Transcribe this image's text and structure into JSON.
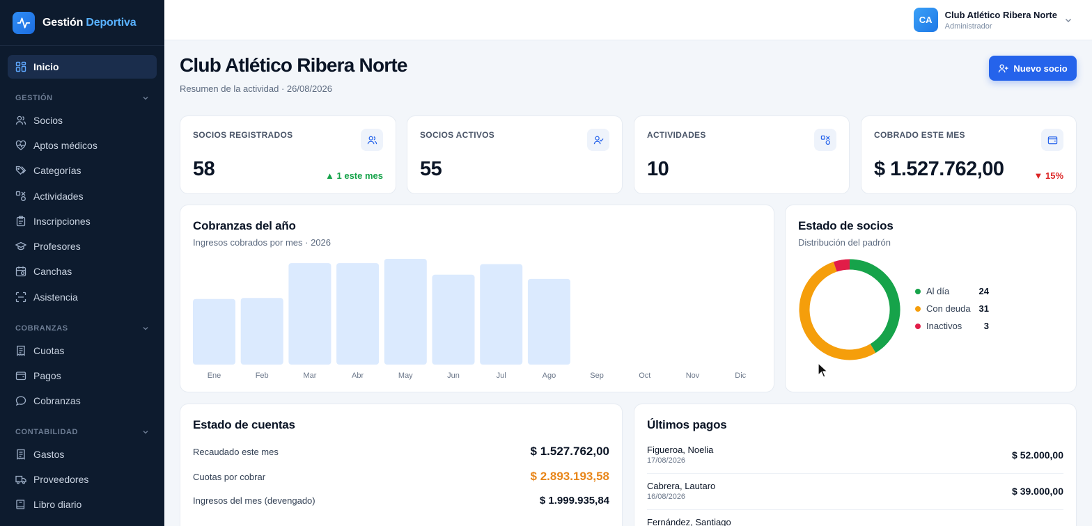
{
  "app": {
    "brand_main": "Gestión",
    "brand_accent": "Deportiva"
  },
  "sidebar": {
    "active": {
      "label": "Inicio",
      "icon": "grid-icon"
    },
    "sections": [
      {
        "label": "GESTIÓN",
        "items": [
          {
            "label": "Socios",
            "icon": "users-icon"
          },
          {
            "label": "Aptos médicos",
            "icon": "heart-pulse-icon"
          },
          {
            "label": "Categorías",
            "icon": "tags-icon"
          },
          {
            "label": "Actividades",
            "icon": "shapes-icon"
          },
          {
            "label": "Inscripciones",
            "icon": "clipboard-icon"
          },
          {
            "label": "Profesores",
            "icon": "graduation-cap-icon"
          },
          {
            "label": "Canchas",
            "icon": "calendar-icon"
          },
          {
            "label": "Asistencia",
            "icon": "scan-icon"
          }
        ]
      },
      {
        "label": "COBRANZAS",
        "items": [
          {
            "label": "Cuotas",
            "icon": "receipt-icon"
          },
          {
            "label": "Pagos",
            "icon": "wallet-icon"
          },
          {
            "label": "Cobranzas",
            "icon": "message-icon"
          }
        ]
      },
      {
        "label": "CONTABILIDAD",
        "items": [
          {
            "label": "Gastos",
            "icon": "receipt-icon"
          },
          {
            "label": "Proveedores",
            "icon": "truck-icon"
          },
          {
            "label": "Libro diario",
            "icon": "book-icon"
          }
        ]
      }
    ]
  },
  "topbar": {
    "avatar_initials": "CA",
    "user_name": "Club Atlético Ribera Norte",
    "user_role": "Administrador"
  },
  "header": {
    "title": "Club Atlético Ribera Norte",
    "subtitle": "Resumen de la actividad · 26/08/2026",
    "new_button": "Nuevo socio"
  },
  "stats": [
    {
      "label": "SOCIOS REGISTRADOS",
      "value": "58",
      "trend": "▲ 1 este mes",
      "trend_dir": "up",
      "icon": "users-icon"
    },
    {
      "label": "SOCIOS ACTIVOS",
      "value": "55",
      "trend": "",
      "icon": "user-check-icon"
    },
    {
      "label": "ACTIVIDADES",
      "value": "10",
      "trend": "",
      "icon": "shapes-icon"
    },
    {
      "label": "COBRADO ESTE MES",
      "value": "$ 1.527.762,00",
      "trend": "▼ 15%",
      "trend_dir": "down",
      "icon": "wallet-icon"
    }
  ],
  "revenue_chart": {
    "title": "Cobranzas del año",
    "subtitle": "Ingresos cobrados por mes · 2026"
  },
  "members_chart": {
    "title": "Estado de socios",
    "subtitle": "Distribución del padrón"
  },
  "chart_data": [
    {
      "type": "bar",
      "title": "Cobranzas del año",
      "subtitle": "Ingresos cobrados por mes · 2026",
      "categories": [
        "Ene",
        "Feb",
        "Mar",
        "Abr",
        "May",
        "Jun",
        "Jul",
        "Ago",
        "Sep",
        "Oct",
        "Nov",
        "Dic"
      ],
      "values": [
        0.62,
        0.63,
        0.96,
        0.96,
        1.0,
        0.85,
        0.95,
        0.81,
        0,
        0,
        0,
        0
      ],
      "value_scale": "relative to May (no y axis printed)",
      "color": "#dbeafe"
    },
    {
      "type": "pie",
      "title": "Estado de socios",
      "subtitle": "Distribución del padrón",
      "donut": true,
      "slices": [
        {
          "label": "Al día",
          "value": 24,
          "color": "#16a34a"
        },
        {
          "label": "Con deuda",
          "value": 31,
          "color": "#f59e0b"
        },
        {
          "label": "Inactivos",
          "value": 3,
          "color": "#e11d48"
        }
      ]
    }
  ],
  "accounts": {
    "title": "Estado de cuentas",
    "rows": [
      {
        "label": "Recaudado este mes",
        "value": "$ 1.527.762,00",
        "color": "#0b1526"
      },
      {
        "label": "Cuotas por cobrar",
        "value": "$ 2.893.193,58",
        "color": "#e8861a"
      },
      {
        "label": "Ingresos del mes (devengado)",
        "value": "$ 1.999.935,84",
        "color": "#0b1526"
      }
    ]
  },
  "payments": {
    "title": "Últimos pagos",
    "rows": [
      {
        "name": "Figueroa, Noelia",
        "date": "17/08/2026",
        "amount": "$ 52.000,00"
      },
      {
        "name": "Cabrera, Lautaro",
        "date": "16/08/2026",
        "amount": "$ 39.000,00"
      },
      {
        "name": "Fernández, Santiago",
        "date": "",
        "amount": ""
      }
    ]
  }
}
